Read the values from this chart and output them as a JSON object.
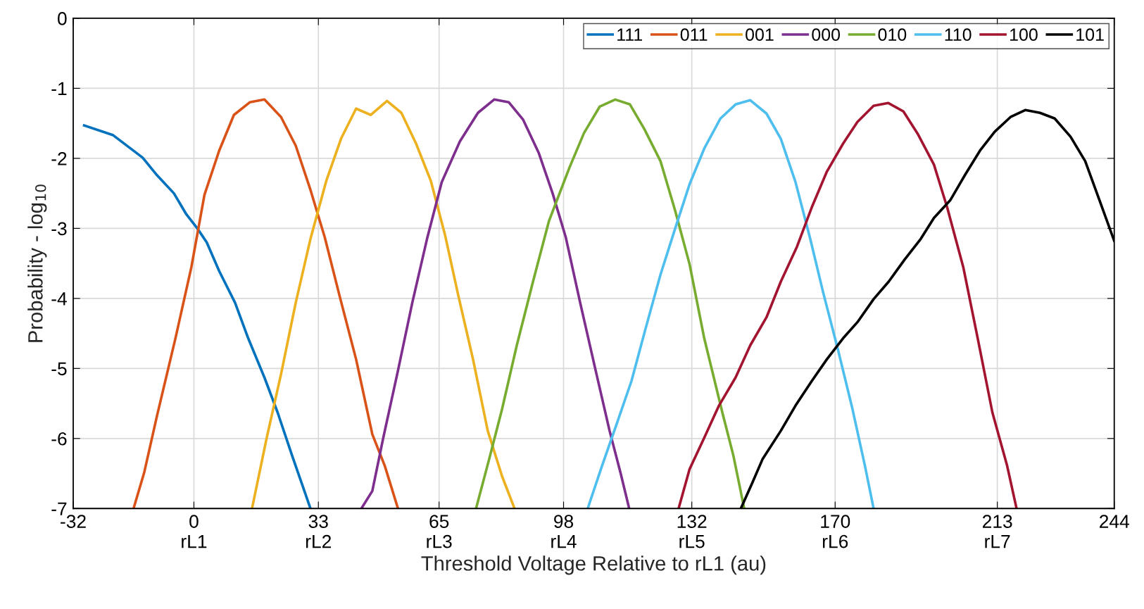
{
  "chart_data": {
    "type": "line",
    "xlabel": "Threshold Voltage Relative to rL1 (au)",
    "ylabel": "Probability - log$_{10}$",
    "xlim": [
      -32,
      244
    ],
    "xticks": [
      -32,
      {
        "value": 0,
        "label": "0\nrL1"
      },
      {
        "value": 33,
        "label": "33\nrL2"
      },
      {
        "value": 65,
        "label": "65\nrL3"
      },
      {
        "value": 98,
        "label": "98\nrL4"
      },
      {
        "value": 132,
        "label": "132\nrL5"
      },
      {
        "value": 170,
        "label": "170\nrL6"
      },
      {
        "value": 213,
        "label": "213\nrL7"
      },
      244
    ],
    "ylim": [
      -7,
      0
    ],
    "yticks": [
      -7,
      -6,
      -5,
      -4,
      -3,
      -2,
      -1,
      0
    ],
    "grid": true,
    "legend": "top right",
    "marker": "none",
    "line_style": "solid",
    "series": [
      {
        "name": "111",
        "color": "#0072bd",
        "x": [
          -29.1,
          -21.4,
          -13.6,
          -9.8,
          -5.3,
          -2.0,
          0.9,
          3.4,
          6.7,
          10.9,
          14.4,
          18.7,
          22.2,
          26.0,
          30.9
        ],
        "values": [
          -1.53,
          -1.67,
          -1.99,
          -2.24,
          -2.5,
          -2.8,
          -3.0,
          -3.2,
          -3.61,
          -4.06,
          -4.57,
          -5.13,
          -5.63,
          -6.24,
          -7.0
        ]
      },
      {
        "name": "011",
        "color": "#d95319",
        "x": [
          -16.0,
          -13.2,
          -9.8,
          -4.9,
          -0.7,
          2.8,
          6.7,
          10.6,
          14.8,
          18.7,
          23.1,
          27.0,
          30.9,
          34.7,
          38.6,
          43.0,
          47.3,
          50.6,
          54.1
        ],
        "values": [
          -7.0,
          -6.49,
          -5.68,
          -4.57,
          -3.56,
          -2.52,
          -1.89,
          -1.38,
          -1.2,
          -1.16,
          -1.41,
          -1.82,
          -2.45,
          -3.13,
          -3.96,
          -4.87,
          -5.94,
          -6.39,
          -7.0
        ]
      },
      {
        "name": "001",
        "color": "#edb120",
        "x": [
          15.4,
          19.3,
          23.1,
          27.0,
          30.9,
          35.1,
          39.0,
          43.0,
          46.9,
          51.2,
          55.0,
          58.9,
          62.8,
          66.6,
          70.1,
          74.0,
          77.9,
          81.7,
          85.0
        ],
        "values": [
          -7.0,
          -5.99,
          -5.08,
          -4.06,
          -3.15,
          -2.32,
          -1.72,
          -1.29,
          -1.38,
          -1.18,
          -1.35,
          -1.79,
          -2.32,
          -3.1,
          -3.96,
          -4.87,
          -5.89,
          -6.54,
          -7.0
        ]
      },
      {
        "name": "000",
        "color": "#7e2f8e",
        "x": [
          44.4,
          47.3,
          50.2,
          54.1,
          57.9,
          61.8,
          65.7,
          70.5,
          75.3,
          79.6,
          83.5,
          87.3,
          91.4,
          95.1,
          98.6,
          102.4,
          106.3,
          110.2,
          113.1,
          115.4
        ],
        "values": [
          -7.0,
          -6.75,
          -5.99,
          -5.03,
          -4.06,
          -3.15,
          -2.34,
          -1.76,
          -1.35,
          -1.16,
          -1.2,
          -1.45,
          -1.92,
          -2.5,
          -3.13,
          -4.06,
          -4.98,
          -5.89,
          -6.49,
          -7.0
        ]
      },
      {
        "name": "010",
        "color": "#77ac30",
        "x": [
          74.8,
          78.3,
          81.7,
          85.6,
          89.9,
          94.1,
          99.5,
          103.4,
          107.6,
          111.7,
          115.6,
          119.4,
          123.7,
          127.6,
          131.4,
          135.3,
          140.1,
          143.0,
          145.9
        ],
        "values": [
          -7.0,
          -6.29,
          -5.58,
          -4.67,
          -3.76,
          -2.9,
          -2.14,
          -1.64,
          -1.26,
          -1.16,
          -1.23,
          -1.58,
          -2.04,
          -2.75,
          -3.51,
          -4.57,
          -5.63,
          -6.24,
          -7.0
        ]
      },
      {
        "name": "110",
        "color": "#4dbeee",
        "x": [
          104.4,
          108.2,
          112.1,
          116.0,
          119.8,
          123.7,
          127.6,
          131.4,
          135.3,
          139.6,
          143.6,
          147.5,
          151.8,
          155.6,
          159.5,
          163.4,
          166.8,
          170.7,
          174.6,
          177.9,
          180.2
        ],
        "values": [
          -7.0,
          -6.39,
          -5.79,
          -5.18,
          -4.42,
          -3.66,
          -3.0,
          -2.37,
          -1.86,
          -1.43,
          -1.23,
          -1.17,
          -1.36,
          -1.72,
          -2.34,
          -3.15,
          -3.91,
          -4.72,
          -5.58,
          -6.39,
          -7.0
        ]
      },
      {
        "name": "100",
        "color": "#a2142f",
        "x": [
          128.5,
          131.4,
          135.3,
          139.2,
          143.6,
          147.5,
          151.8,
          155.6,
          159.9,
          163.8,
          167.8,
          172.1,
          175.9,
          180.2,
          184.1,
          188.1,
          192.0,
          196.2,
          199.7,
          204.0,
          207.8,
          211.7,
          215.6,
          218.1
        ],
        "values": [
          -7.0,
          -6.44,
          -5.99,
          -5.53,
          -5.13,
          -4.67,
          -4.27,
          -3.76,
          -3.26,
          -2.7,
          -2.19,
          -1.79,
          -1.48,
          -1.25,
          -1.21,
          -1.33,
          -1.66,
          -2.09,
          -2.7,
          -3.56,
          -4.57,
          -5.63,
          -6.39,
          -7.0
        ]
      },
      {
        "name": "101",
        "color": "#000000",
        "x": [
          145.0,
          147.9,
          150.8,
          155.6,
          159.5,
          163.8,
          167.8,
          172.1,
          175.9,
          180.2,
          184.2,
          188.5,
          192.7,
          196.2,
          200.5,
          204.4,
          208.4,
          212.3,
          216.5,
          220.4,
          224.3,
          228.2,
          232.4,
          236.3,
          240.1,
          244.0
        ],
        "values": [
          -7.0,
          -6.65,
          -6.29,
          -5.89,
          -5.53,
          -5.18,
          -4.87,
          -4.57,
          -4.34,
          -4.01,
          -3.76,
          -3.44,
          -3.15,
          -2.85,
          -2.6,
          -2.24,
          -1.89,
          -1.62,
          -1.41,
          -1.31,
          -1.35,
          -1.43,
          -1.69,
          -2.04,
          -2.6,
          -3.18
        ]
      }
    ]
  }
}
